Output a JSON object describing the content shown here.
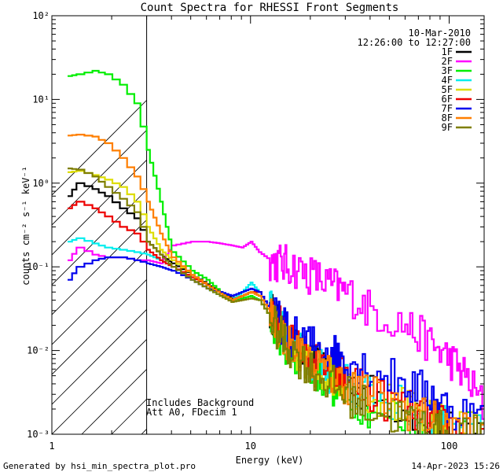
{
  "chart_data": {
    "type": "line",
    "title": "Count Spectra for RHESSI Front Segments",
    "xlabel": "Energy (keV)",
    "ylabel": "counts cm⁻² s⁻¹ keV⁻¹",
    "xscale": "log",
    "yscale": "log",
    "xlim": [
      1,
      150
    ],
    "ylim": [
      0.001,
      100
    ],
    "x_ticks": [
      {
        "value": 1,
        "label": "1"
      },
      {
        "value": 10,
        "label": "10"
      },
      {
        "value": 100,
        "label": "100"
      }
    ],
    "y_ticks": [
      {
        "value": 0.001,
        "label": "10⁻³"
      },
      {
        "value": 0.01,
        "label": "10⁻²"
      },
      {
        "value": 0.1,
        "label": "10⁻¹"
      },
      {
        "value": 1,
        "label": "10⁰"
      },
      {
        "value": 10,
        "label": "10¹"
      },
      {
        "value": 100,
        "label": "10²"
      }
    ],
    "date": "10-Mar-2010",
    "time_range": "12:26:00 to 12:27:00",
    "excluded_region_max_kev": 3,
    "annotations": [
      "Includes Background",
      "Att A0, FDecim 1"
    ],
    "footer_left": "Generated by hsi_min_spectra_plot.pro",
    "footer_right": "14-Apr-2023 15:26",
    "series": [
      {
        "name": "1F",
        "color": "#000000",
        "points": [
          [
            1.2,
            0.7
          ],
          [
            1.33,
            1.0
          ],
          [
            1.6,
            0.85
          ],
          [
            1.85,
            0.7
          ],
          [
            2.2,
            0.5
          ],
          [
            2.6,
            0.38
          ],
          [
            3.0,
            0.2
          ],
          [
            3.5,
            0.14
          ],
          [
            4.0,
            0.11
          ],
          [
            5.0,
            0.08
          ],
          [
            6.0,
            0.062
          ],
          [
            7.0,
            0.05
          ],
          [
            8.0,
            0.042
          ],
          [
            9.0,
            0.045
          ],
          [
            10.0,
            0.05
          ],
          [
            11.0,
            0.05
          ],
          [
            12.5,
            0.03
          ],
          [
            14.0,
            0.02
          ],
          [
            16.0,
            0.012
          ],
          [
            20.0,
            0.007
          ],
          [
            25.0,
            0.005
          ],
          [
            30.0,
            0.004
          ],
          [
            40.0,
            0.003
          ],
          [
            60.0,
            0.002
          ],
          [
            80.0,
            0.0015
          ],
          [
            100.0,
            0.0013
          ],
          [
            150.0,
            0.001
          ]
        ]
      },
      {
        "name": "2F",
        "color": "#ff00ff",
        "points": [
          [
            1.2,
            0.12
          ],
          [
            1.33,
            0.17
          ],
          [
            1.6,
            0.14
          ],
          [
            1.85,
            0.13
          ],
          [
            2.2,
            0.13
          ],
          [
            2.6,
            0.12
          ],
          [
            3.0,
            0.12
          ],
          [
            3.5,
            0.11
          ],
          [
            4.0,
            0.18
          ],
          [
            5.0,
            0.2
          ],
          [
            6.0,
            0.2
          ],
          [
            7.0,
            0.19
          ],
          [
            8.0,
            0.18
          ],
          [
            9.0,
            0.17
          ],
          [
            10.0,
            0.2
          ],
          [
            11.0,
            0.15
          ],
          [
            12.5,
            0.12
          ],
          [
            14.0,
            0.11
          ],
          [
            16.0,
            0.1
          ],
          [
            20.0,
            0.08
          ],
          [
            25.0,
            0.06
          ],
          [
            30.0,
            0.05
          ],
          [
            40.0,
            0.03
          ],
          [
            60.0,
            0.02
          ],
          [
            80.0,
            0.012
          ],
          [
            100.0,
            0.008
          ],
          [
            120.0,
            0.005
          ],
          [
            150.0,
            0.002
          ]
        ]
      },
      {
        "name": "3F",
        "color": "#00ee00",
        "points": [
          [
            1.2,
            19
          ],
          [
            1.33,
            20
          ],
          [
            1.6,
            22
          ],
          [
            1.85,
            20
          ],
          [
            2.2,
            15
          ],
          [
            2.6,
            9
          ],
          [
            3.0,
            2.5
          ],
          [
            3.5,
            0.6
          ],
          [
            4.0,
            0.15
          ],
          [
            5.0,
            0.09
          ],
          [
            6.0,
            0.07
          ],
          [
            7.0,
            0.05
          ],
          [
            8.0,
            0.04
          ],
          [
            9.0,
            0.042
          ],
          [
            10.0,
            0.045
          ],
          [
            11.0,
            0.04
          ],
          [
            12.5,
            0.025
          ],
          [
            14.0,
            0.015
          ],
          [
            16.0,
            0.01
          ],
          [
            20.0,
            0.006
          ],
          [
            25.0,
            0.004
          ],
          [
            30.0,
            0.003
          ],
          [
            40.0,
            0.002
          ],
          [
            60.0,
            0.0015
          ],
          [
            80.0,
            0.0012
          ],
          [
            100.0,
            0.0011
          ],
          [
            150.0,
            0.001
          ]
        ]
      },
      {
        "name": "4F",
        "color": "#00eeee",
        "points": [
          [
            1.2,
            0.2
          ],
          [
            1.33,
            0.22
          ],
          [
            1.6,
            0.19
          ],
          [
            1.85,
            0.17
          ],
          [
            2.2,
            0.16
          ],
          [
            2.6,
            0.15
          ],
          [
            3.0,
            0.14
          ],
          [
            3.5,
            0.12
          ],
          [
            4.0,
            0.1
          ],
          [
            5.0,
            0.07
          ],
          [
            6.0,
            0.055
          ],
          [
            7.0,
            0.045
          ],
          [
            8.0,
            0.04
          ],
          [
            9.0,
            0.05
          ],
          [
            10.0,
            0.065
          ],
          [
            11.0,
            0.05
          ],
          [
            12.5,
            0.03
          ],
          [
            14.0,
            0.02
          ],
          [
            16.0,
            0.012
          ],
          [
            20.0,
            0.007
          ],
          [
            25.0,
            0.005
          ],
          [
            30.0,
            0.004
          ],
          [
            40.0,
            0.003
          ],
          [
            60.0,
            0.002
          ],
          [
            80.0,
            0.0015
          ],
          [
            100.0,
            0.0012
          ],
          [
            150.0,
            0.001
          ]
        ]
      },
      {
        "name": "5F",
        "color": "#dddd00",
        "points": [
          [
            1.2,
            1.35
          ],
          [
            1.33,
            1.4
          ],
          [
            1.6,
            1.25
          ],
          [
            1.85,
            1.1
          ],
          [
            2.2,
            0.9
          ],
          [
            2.6,
            0.6
          ],
          [
            3.0,
            0.3
          ],
          [
            3.5,
            0.16
          ],
          [
            4.0,
            0.12
          ],
          [
            5.0,
            0.08
          ],
          [
            6.0,
            0.06
          ],
          [
            7.0,
            0.048
          ],
          [
            8.0,
            0.04
          ],
          [
            9.0,
            0.045
          ],
          [
            10.0,
            0.05
          ],
          [
            11.0,
            0.045
          ],
          [
            12.5,
            0.028
          ],
          [
            14.0,
            0.018
          ],
          [
            16.0,
            0.011
          ],
          [
            20.0,
            0.007
          ],
          [
            25.0,
            0.005
          ],
          [
            30.0,
            0.004
          ],
          [
            40.0,
            0.003
          ],
          [
            60.0,
            0.002
          ],
          [
            80.0,
            0.0015
          ],
          [
            100.0,
            0.0012
          ],
          [
            150.0,
            0.001
          ]
        ]
      },
      {
        "name": "6F",
        "color": "#ee0000",
        "points": [
          [
            1.2,
            0.5
          ],
          [
            1.33,
            0.6
          ],
          [
            1.6,
            0.5
          ],
          [
            1.85,
            0.4
          ],
          [
            2.2,
            0.3
          ],
          [
            2.6,
            0.25
          ],
          [
            3.0,
            0.16
          ],
          [
            3.5,
            0.12
          ],
          [
            4.0,
            0.1
          ],
          [
            5.0,
            0.075
          ],
          [
            6.0,
            0.06
          ],
          [
            7.0,
            0.048
          ],
          [
            8.0,
            0.04
          ],
          [
            9.0,
            0.045
          ],
          [
            10.0,
            0.05
          ],
          [
            11.0,
            0.05
          ],
          [
            12.5,
            0.03
          ],
          [
            14.0,
            0.02
          ],
          [
            16.0,
            0.012
          ],
          [
            20.0,
            0.008
          ],
          [
            25.0,
            0.006
          ],
          [
            30.0,
            0.005
          ],
          [
            40.0,
            0.003
          ],
          [
            60.0,
            0.002
          ],
          [
            80.0,
            0.0015
          ],
          [
            100.0,
            0.0012
          ],
          [
            150.0,
            0.001
          ]
        ]
      },
      {
        "name": "7F",
        "color": "#0000ee",
        "points": [
          [
            1.2,
            0.07
          ],
          [
            1.33,
            0.1
          ],
          [
            1.6,
            0.12
          ],
          [
            1.85,
            0.13
          ],
          [
            2.2,
            0.13
          ],
          [
            2.6,
            0.12
          ],
          [
            3.0,
            0.11
          ],
          [
            3.5,
            0.1
          ],
          [
            4.0,
            0.09
          ],
          [
            5.0,
            0.07
          ],
          [
            6.0,
            0.055
          ],
          [
            7.0,
            0.05
          ],
          [
            8.0,
            0.045
          ],
          [
            9.0,
            0.05
          ],
          [
            10.0,
            0.055
          ],
          [
            11.0,
            0.05
          ],
          [
            12.5,
            0.03
          ],
          [
            14.0,
            0.022
          ],
          [
            16.0,
            0.015
          ],
          [
            20.0,
            0.012
          ],
          [
            25.0,
            0.01
          ],
          [
            30.0,
            0.008
          ],
          [
            40.0,
            0.006
          ],
          [
            60.0,
            0.004
          ],
          [
            80.0,
            0.003
          ],
          [
            100.0,
            0.002
          ],
          [
            150.0,
            0.0015
          ]
        ]
      },
      {
        "name": "8F",
        "color": "#ff7f00",
        "points": [
          [
            1.2,
            3.7
          ],
          [
            1.33,
            3.8
          ],
          [
            1.6,
            3.6
          ],
          [
            1.85,
            3.0
          ],
          [
            2.2,
            2.0
          ],
          [
            2.6,
            1.2
          ],
          [
            3.0,
            0.6
          ],
          [
            3.5,
            0.25
          ],
          [
            4.0,
            0.13
          ],
          [
            5.0,
            0.08
          ],
          [
            6.0,
            0.06
          ],
          [
            7.0,
            0.048
          ],
          [
            8.0,
            0.04
          ],
          [
            9.0,
            0.045
          ],
          [
            10.0,
            0.05
          ],
          [
            11.0,
            0.045
          ],
          [
            12.5,
            0.028
          ],
          [
            14.0,
            0.017
          ],
          [
            16.0,
            0.011
          ],
          [
            20.0,
            0.007
          ],
          [
            25.0,
            0.005
          ],
          [
            30.0,
            0.004
          ],
          [
            40.0,
            0.003
          ],
          [
            60.0,
            0.002
          ],
          [
            80.0,
            0.0015
          ],
          [
            100.0,
            0.0012
          ],
          [
            150.0,
            0.001
          ]
        ]
      },
      {
        "name": "9F",
        "color": "#7f7f00",
        "points": [
          [
            1.2,
            1.5
          ],
          [
            1.33,
            1.45
          ],
          [
            1.6,
            1.2
          ],
          [
            1.85,
            0.9
          ],
          [
            2.2,
            0.65
          ],
          [
            2.6,
            0.45
          ],
          [
            3.0,
            0.2
          ],
          [
            3.5,
            0.14
          ],
          [
            4.0,
            0.1
          ],
          [
            5.0,
            0.07
          ],
          [
            6.0,
            0.055
          ],
          [
            7.0,
            0.045
          ],
          [
            8.0,
            0.038
          ],
          [
            9.0,
            0.04
          ],
          [
            10.0,
            0.042
          ],
          [
            11.0,
            0.04
          ],
          [
            12.5,
            0.025
          ],
          [
            14.0,
            0.015
          ],
          [
            16.0,
            0.01
          ],
          [
            20.0,
            0.006
          ],
          [
            25.0,
            0.004
          ],
          [
            30.0,
            0.003
          ],
          [
            40.0,
            0.002
          ],
          [
            60.0,
            0.0015
          ],
          [
            80.0,
            0.0012
          ],
          [
            100.0,
            0.001
          ],
          [
            150.0,
            0.001
          ]
        ]
      }
    ]
  }
}
